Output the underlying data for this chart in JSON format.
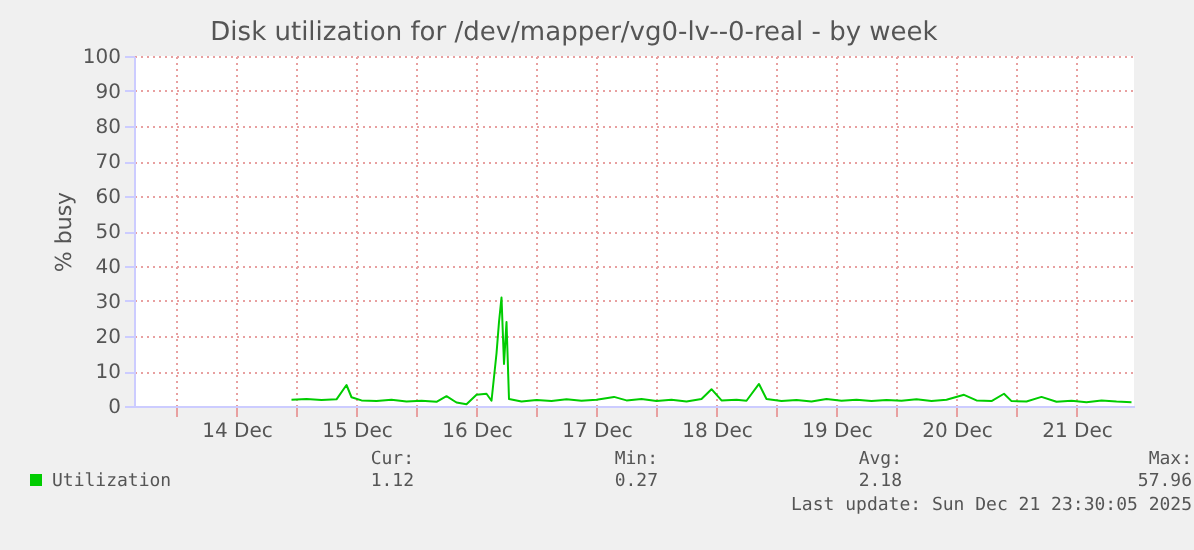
{
  "chart_data": {
    "type": "line",
    "title": "Disk utilization for /dev/mapper/vg0-lv--0-real - by week",
    "ylabel": "% busy",
    "x": [
      "2025-12-14T23:00",
      "2025-12-15T02:00",
      "2025-12-15T05:00",
      "2025-12-15T08:00",
      "2025-12-15T10:00",
      "2025-12-15T11:00",
      "2025-12-15T13:00",
      "2025-12-15T16:00",
      "2025-12-15T19:00",
      "2025-12-15T22:00",
      "2025-12-16T01:00",
      "2025-12-16T04:00",
      "2025-12-16T06:00",
      "2025-12-16T08:00",
      "2025-12-16T10:00",
      "2025-12-16T12:00",
      "2025-12-16T14:00",
      "2025-12-16T15:00",
      "2025-12-16T16:00",
      "2025-12-16T16:30",
      "2025-12-16T17:00",
      "2025-12-16T17:30",
      "2025-12-16T18:00",
      "2025-12-16T18:30",
      "2025-12-16T21:00",
      "2025-12-17T00:00",
      "2025-12-17T03:00",
      "2025-12-17T06:00",
      "2025-12-17T09:00",
      "2025-12-17T12:00",
      "2025-12-17T15:30",
      "2025-12-17T18:00",
      "2025-12-17T21:00",
      "2025-12-18T00:00",
      "2025-12-18T03:00",
      "2025-12-18T06:00",
      "2025-12-18T09:00",
      "2025-12-18T11:00",
      "2025-12-18T13:00",
      "2025-12-18T16:00",
      "2025-12-18T18:00",
      "2025-12-18T20:30",
      "2025-12-18T22:00",
      "2025-12-19T01:00",
      "2025-12-19T04:00",
      "2025-12-19T07:00",
      "2025-12-19T10:00",
      "2025-12-19T13:00",
      "2025-12-19T16:00",
      "2025-12-19T19:00",
      "2025-12-19T22:00",
      "2025-12-20T01:00",
      "2025-12-20T04:00",
      "2025-12-20T07:00",
      "2025-12-20T10:00",
      "2025-12-20T13:30",
      "2025-12-20T16:00",
      "2025-12-20T19:00",
      "2025-12-20T21:30",
      "2025-12-20T23:00",
      "2025-12-21T02:00",
      "2025-12-21T05:00",
      "2025-12-21T08:00",
      "2025-12-21T11:00",
      "2025-12-21T14:00",
      "2025-12-21T17:00",
      "2025-12-21T20:00",
      "2025-12-21T23:00"
    ],
    "series": [
      {
        "name": "Utilization",
        "color": "#00cc00",
        "values": [
          1.8,
          2.0,
          1.7,
          1.9,
          6.0,
          2.5,
          1.6,
          1.4,
          1.8,
          1.3,
          1.5,
          1.2,
          2.8,
          1.0,
          0.5,
          3.2,
          3.5,
          1.5,
          15,
          24,
          31,
          12,
          24,
          2.0,
          1.3,
          1.7,
          1.4,
          1.9,
          1.5,
          1.8,
          2.6,
          1.6,
          2.0,
          1.4,
          1.8,
          1.3,
          2.0,
          4.8,
          1.6,
          1.8,
          1.5,
          6.3,
          2.0,
          1.4,
          1.7,
          1.3,
          2.0,
          1.5,
          1.8,
          1.4,
          1.7,
          1.5,
          1.9,
          1.4,
          1.8,
          3.2,
          1.6,
          1.4,
          3.5,
          1.4,
          1.3,
          2.6,
          1.2,
          1.5,
          1.1,
          1.6,
          1.3,
          1.1
        ]
      }
    ],
    "xlim": [
      "2025-12-13T15:30",
      "2025-12-21T23:30"
    ],
    "xticks": [
      {
        "value": "2025-12-14T00:00",
        "label": null
      },
      {
        "value": "2025-12-14T12:00",
        "label": "14 Dec"
      },
      {
        "value": "2025-12-15T00:00",
        "label": null
      },
      {
        "value": "2025-12-15T12:00",
        "label": "15 Dec"
      },
      {
        "value": "2025-12-16T00:00",
        "label": null
      },
      {
        "value": "2025-12-16T12:00",
        "label": "16 Dec"
      },
      {
        "value": "2025-12-17T00:00",
        "label": null
      },
      {
        "value": "2025-12-17T12:00",
        "label": "17 Dec"
      },
      {
        "value": "2025-12-18T00:00",
        "label": null
      },
      {
        "value": "2025-12-18T12:00",
        "label": "18 Dec"
      },
      {
        "value": "2025-12-19T00:00",
        "label": null
      },
      {
        "value": "2025-12-19T12:00",
        "label": "19 Dec"
      },
      {
        "value": "2025-12-20T00:00",
        "label": null
      },
      {
        "value": "2025-12-20T12:00",
        "label": "20 Dec"
      },
      {
        "value": "2025-12-21T00:00",
        "label": null
      },
      {
        "value": "2025-12-21T12:00",
        "label": "21 Dec"
      }
    ],
    "ylim": [
      0,
      100
    ],
    "yticks": [
      0,
      10,
      20,
      30,
      40,
      50,
      60,
      70,
      80,
      90,
      100
    ],
    "grid": true,
    "legend": "bottom left",
    "annotations": [
      "Cur:",
      "1.12",
      "Min:",
      "0.27",
      "Avg:",
      "2.18",
      "Max:",
      "57.96",
      "Last update: Sun Dec 21 23:30:05 2025"
    ]
  }
}
